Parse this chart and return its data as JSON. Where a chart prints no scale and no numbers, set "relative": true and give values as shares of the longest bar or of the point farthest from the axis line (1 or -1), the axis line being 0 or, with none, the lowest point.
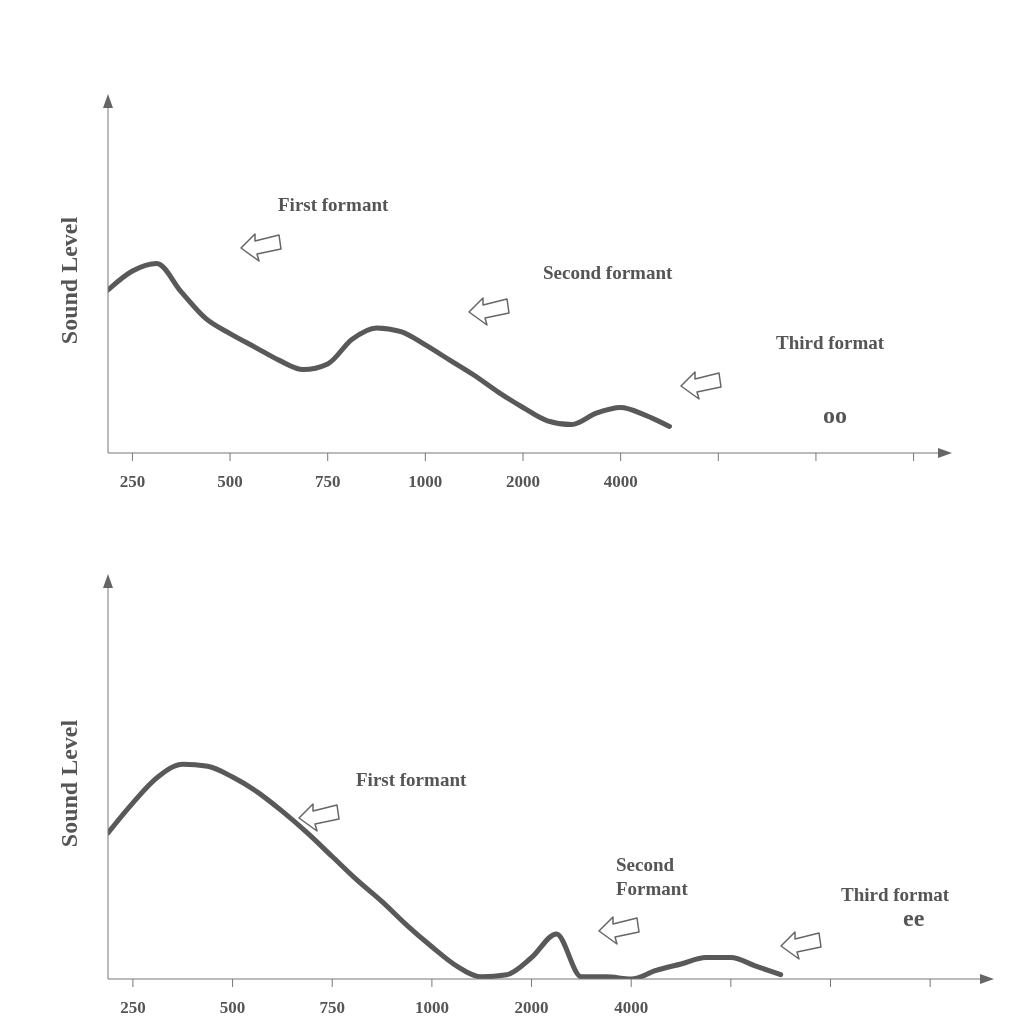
{
  "chart_data": [
    {
      "type": "line",
      "relative": true,
      "ylabel": "Sound Level",
      "categories": [
        null,
        "250",
        null,
        null,
        null,
        "500",
        null,
        null,
        null,
        "750",
        null,
        null,
        null,
        "1000",
        null,
        null,
        null,
        "2000",
        null,
        null,
        null,
        "4000",
        null,
        null,
        null,
        null,
        null,
        null,
        null,
        null,
        null,
        null,
        null,
        null,
        null
      ],
      "series": [
        {
          "color": "#595959",
          "values": [
            0.86,
            0.96,
            1.0,
            0.85,
            0.71,
            0.63,
            0.56,
            0.49,
            0.44,
            0.47,
            0.6,
            0.66,
            0.64,
            0.57,
            0.49,
            0.41,
            0.32,
            0.24,
            0.17,
            0.15,
            0.21,
            0.24,
            0.2,
            0.14,
            null,
            null,
            null,
            null,
            null,
            null,
            null,
            null,
            null,
            null,
            null
          ]
        }
      ],
      "annotations": [
        "First formant",
        "Second formant",
        "Third format",
        "oo"
      ]
    },
    {
      "type": "line",
      "relative": true,
      "ylabel": "Sound Level",
      "categories": [
        null,
        "250",
        null,
        null,
        null,
        "500",
        null,
        null,
        null,
        "750",
        null,
        null,
        null,
        "1000",
        null,
        null,
        null,
        "2000",
        null,
        null,
        null,
        "4000",
        null,
        null,
        null,
        null,
        null,
        null,
        null,
        null,
        null,
        null,
        null,
        null,
        null,
        null
      ],
      "series": [
        {
          "color": "#595959",
          "values": [
            0.68,
            0.82,
            0.94,
            1.0,
            0.99,
            0.94,
            0.87,
            0.78,
            0.68,
            0.57,
            0.46,
            0.36,
            0.25,
            0.15,
            0.06,
            0.01,
            0.02,
            0.1,
            0.21,
            0.01,
            0.01,
            0,
            0.04,
            0.07,
            0.1,
            0.1,
            0.06,
            0.02,
            null,
            null,
            null,
            null,
            null,
            null,
            null,
            null
          ]
        }
      ],
      "annotations": [
        "First formant",
        "Second Formant",
        "Third format",
        "ee"
      ]
    }
  ]
}
